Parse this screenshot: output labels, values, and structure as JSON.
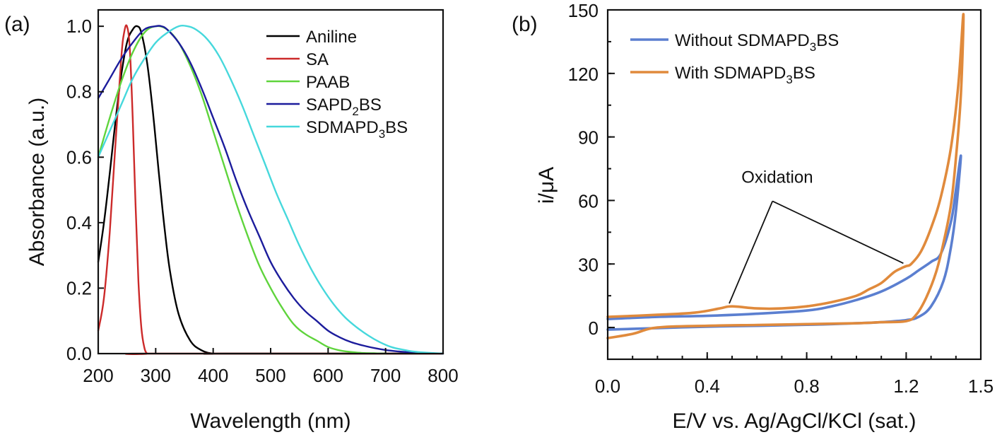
{
  "chart_data": [
    {
      "panel_label": "(a)",
      "type": "line",
      "xlabel": "Wavelength (nm)",
      "ylabel": "Absorbance (a.u.)",
      "xlim": [
        200,
        800
      ],
      "ylim": [
        0.0,
        1.05
      ],
      "xticks": [
        200,
        300,
        400,
        500,
        600,
        700,
        800
      ],
      "xtick_labels": [
        "200",
        "300",
        "400",
        "500",
        "600",
        "700",
        "800"
      ],
      "yticks": [
        0.0,
        0.2,
        0.4,
        0.6,
        0.8,
        1.0
      ],
      "ytick_labels": [
        "0.0",
        "0.2",
        "0.4",
        "0.6",
        "0.8",
        "1.0"
      ],
      "legend_position": "top-right",
      "series": [
        {
          "name": "Aniline",
          "label_main": "Aniline",
          "label_sub": "",
          "label_tail": "",
          "color": "#000000",
          "x": [
            200,
            210,
            220,
            230,
            240,
            250,
            260,
            268,
            275,
            285,
            295,
            305,
            315,
            325,
            340,
            360,
            380,
            400,
            420,
            800
          ],
          "y": [
            0.28,
            0.4,
            0.55,
            0.71,
            0.85,
            0.95,
            0.99,
            1.0,
            0.98,
            0.89,
            0.74,
            0.56,
            0.39,
            0.25,
            0.12,
            0.04,
            0.01,
            0.0,
            0.0,
            0.0
          ]
        },
        {
          "name": "SA",
          "label_main": "SA",
          "label_sub": "",
          "label_tail": "",
          "color": "#cc2a2a",
          "x": [
            200,
            210,
            220,
            230,
            240,
            245,
            250,
            255,
            260,
            265,
            270,
            275,
            280,
            285,
            290,
            800
          ],
          "y": [
            0.07,
            0.17,
            0.37,
            0.64,
            0.9,
            0.98,
            1.0,
            0.93,
            0.72,
            0.45,
            0.22,
            0.08,
            0.02,
            0.0,
            0.0,
            0.0
          ]
        },
        {
          "name": "PAAB",
          "label_main": "PAAB",
          "label_sub": "",
          "label_tail": "",
          "color": "#5fd43c",
          "x": [
            200,
            220,
            240,
            260,
            280,
            300,
            320,
            340,
            360,
            380,
            400,
            420,
            440,
            460,
            480,
            500,
            520,
            540,
            560,
            580,
            600,
            620,
            640,
            660,
            680,
            700
          ],
          "y": [
            0.6,
            0.72,
            0.83,
            0.92,
            0.98,
            1.0,
            0.99,
            0.95,
            0.88,
            0.79,
            0.68,
            0.57,
            0.46,
            0.36,
            0.27,
            0.2,
            0.14,
            0.09,
            0.06,
            0.04,
            0.02,
            0.01,
            0.005,
            0.002,
            0.001,
            0.0
          ]
        },
        {
          "name": "SAPD2BS",
          "label_main": "SAPD",
          "label_sub": "2",
          "label_tail": "BS",
          "color": "#1c1c9c",
          "x": [
            200,
            220,
            240,
            260,
            280,
            300,
            310,
            320,
            340,
            360,
            380,
            400,
            420,
            440,
            460,
            480,
            500,
            520,
            540,
            560,
            580,
            600,
            620,
            640,
            660,
            680,
            700,
            720,
            740,
            760,
            780,
            800
          ],
          "y": [
            0.78,
            0.84,
            0.9,
            0.95,
            0.99,
            1.0,
            1.0,
            0.99,
            0.95,
            0.89,
            0.81,
            0.72,
            0.63,
            0.53,
            0.44,
            0.36,
            0.28,
            0.22,
            0.17,
            0.13,
            0.1,
            0.07,
            0.05,
            0.035,
            0.025,
            0.017,
            0.011,
            0.007,
            0.004,
            0.002,
            0.001,
            0.0
          ]
        },
        {
          "name": "SDMAPD3BS",
          "label_main": "SDMAPD",
          "label_sub": "3",
          "label_tail": "BS",
          "color": "#46d8dc",
          "x": [
            200,
            220,
            240,
            260,
            280,
            300,
            320,
            340,
            355,
            370,
            390,
            410,
            430,
            450,
            470,
            490,
            510,
            530,
            550,
            570,
            590,
            610,
            630,
            650,
            670,
            690,
            710,
            730,
            750,
            770,
            800
          ],
          "y": [
            0.6,
            0.68,
            0.76,
            0.84,
            0.9,
            0.95,
            0.98,
            1.0,
            1.0,
            0.99,
            0.96,
            0.91,
            0.84,
            0.76,
            0.67,
            0.58,
            0.49,
            0.41,
            0.33,
            0.26,
            0.2,
            0.15,
            0.11,
            0.08,
            0.055,
            0.035,
            0.02,
            0.012,
            0.006,
            0.003,
            0.0
          ]
        }
      ]
    },
    {
      "panel_label": "(b)",
      "type": "line",
      "xlabel": "E/V vs. Ag/AgCl/KCl (sat.)",
      "ylabel": "i/μA",
      "xlim": [
        0.0,
        1.5
      ],
      "ylim": [
        -15,
        150
      ],
      "xticks": [
        0.0,
        0.4,
        0.8,
        1.2,
        1.5
      ],
      "xtick_labels": [
        "0.0",
        "0.4",
        "0.8",
        "1.2",
        "1.5"
      ],
      "yticks": [
        0,
        30,
        60,
        90,
        120,
        150
      ],
      "ytick_labels": [
        "0",
        "30",
        "60",
        "90",
        "120",
        "150"
      ],
      "legend_position": "top-left",
      "annotation": {
        "text": "Oxidation",
        "targets": [
          [
            0.5,
            10
          ],
          [
            1.2,
            29
          ]
        ],
        "anchor": [
          0.6,
          65
        ]
      },
      "series": [
        {
          "name": "Without SDMAPD3BS",
          "label_main": "Without SDMAPD",
          "label_sub": "3",
          "label_tail": "BS",
          "color": "#5b7fd0",
          "x": [
            0.0,
            0.2,
            0.4,
            0.6,
            0.8,
            0.9,
            1.0,
            1.1,
            1.2,
            1.25,
            1.3,
            1.34,
            1.38,
            1.4,
            1.42,
            1.4,
            1.38,
            1.35,
            1.3,
            1.25,
            1.2,
            1.1,
            1.0,
            0.9,
            0.8,
            0.6,
            0.4,
            0.2,
            0.0
          ],
          "y": [
            4,
            5,
            5.5,
            6.5,
            8,
            10,
            13,
            17,
            23,
            27,
            31,
            35,
            50,
            65,
            81,
            55,
            38,
            22,
            10,
            5,
            3.5,
            2.5,
            2,
            1.6,
            1.3,
            0.8,
            0.4,
            -0.3,
            -1
          ]
        },
        {
          "name": "With SDMAPD3BS",
          "label_main": "With SDMAPD",
          "label_sub": "3",
          "label_tail": "BS",
          "color": "#e08a3c",
          "x": [
            0.0,
            0.2,
            0.35,
            0.45,
            0.5,
            0.6,
            0.7,
            0.8,
            0.9,
            1.0,
            1.05,
            1.1,
            1.15,
            1.18,
            1.2,
            1.22,
            1.26,
            1.3,
            1.34,
            1.38,
            1.41,
            1.43,
            1.42,
            1.4,
            1.38,
            1.35,
            1.32,
            1.28,
            1.24,
            1.2,
            1.1,
            1.0,
            0.8,
            0.6,
            0.4,
            0.2,
            0.1,
            0.0
          ],
          "y": [
            5,
            6,
            7,
            9,
            10,
            9,
            9,
            10,
            12,
            15,
            18,
            21,
            26,
            28,
            29,
            30,
            36,
            47,
            62,
            85,
            115,
            148,
            110,
            80,
            58,
            40,
            26,
            14,
            6,
            3,
            2.5,
            2,
            1.6,
            1.2,
            0.8,
            0,
            -3,
            -5
          ]
        }
      ]
    }
  ]
}
